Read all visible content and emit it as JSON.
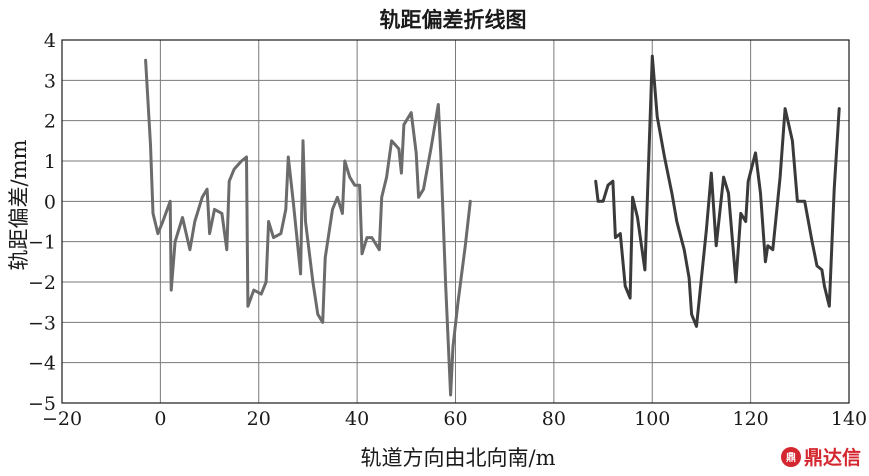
{
  "chart_data": {
    "type": "line",
    "title": "轨距偏差折线图",
    "xlabel": "轨道方向由北向南/m",
    "ylabel": "轨距偏差/mm",
    "xlim": [
      -20,
      140
    ],
    "ylim": [
      -5,
      4
    ],
    "xticks": [
      -20,
      0,
      20,
      40,
      60,
      80,
      100,
      120,
      140
    ],
    "yticks": [
      -5,
      -4,
      -3,
      -2,
      -1,
      0,
      1,
      2,
      3,
      4
    ],
    "grid": true,
    "legend": "none",
    "series": [
      {
        "color": "#6b6b6b",
        "points": [
          [
            -3,
            3.5
          ],
          [
            -2,
            1.4
          ],
          [
            -1.5,
            -0.3
          ],
          [
            -0.5,
            -0.8
          ],
          [
            0.5,
            -0.5
          ],
          [
            2,
            0
          ],
          [
            2.2,
            -2.2
          ],
          [
            3,
            -1
          ],
          [
            4.5,
            -0.4
          ],
          [
            6,
            -1.2
          ],
          [
            7,
            -0.5
          ],
          [
            8.5,
            0.1
          ],
          [
            9.5,
            0.3
          ],
          [
            10,
            -0.8
          ],
          [
            11,
            -0.2
          ],
          [
            12.5,
            -0.3
          ],
          [
            13.5,
            -1.2
          ],
          [
            14,
            0.5
          ],
          [
            15,
            0.8
          ],
          [
            16.5,
            1.0
          ],
          [
            17.5,
            1.1
          ],
          [
            17.8,
            -2.6
          ],
          [
            19,
            -2.2
          ],
          [
            20.5,
            -2.3
          ],
          [
            21.5,
            -2.0
          ],
          [
            22,
            -0.5
          ],
          [
            23,
            -0.9
          ],
          [
            24.5,
            -0.8
          ],
          [
            25.5,
            -0.2
          ],
          [
            26,
            1.1
          ],
          [
            27,
            0
          ],
          [
            28.5,
            -1.8
          ],
          [
            29,
            1.5
          ],
          [
            29.5,
            -0.5
          ],
          [
            31,
            -2
          ],
          [
            32,
            -2.8
          ],
          [
            33,
            -3
          ],
          [
            33.5,
            -1.4
          ],
          [
            35,
            -0.2
          ],
          [
            36,
            0.1
          ],
          [
            37,
            -0.3
          ],
          [
            37.5,
            1.0
          ],
          [
            38.5,
            0.6
          ],
          [
            39.5,
            0.4
          ],
          [
            40.5,
            0.4
          ],
          [
            41,
            -1.3
          ],
          [
            42,
            -0.9
          ],
          [
            43,
            -0.9
          ],
          [
            44.5,
            -1.2
          ],
          [
            45,
            0.1
          ],
          [
            46,
            0.6
          ],
          [
            47,
            1.5
          ],
          [
            48.5,
            1.3
          ],
          [
            49,
            0.7
          ],
          [
            49.5,
            1.9
          ],
          [
            51,
            2.2
          ],
          [
            52,
            1.2
          ],
          [
            52.5,
            0.1
          ],
          [
            53.5,
            0.3
          ],
          [
            55,
            1.3
          ],
          [
            56.5,
            2.4
          ],
          [
            57,
            1.2
          ],
          [
            58,
            -2.1
          ],
          [
            59,
            -4.8
          ],
          [
            59.5,
            -3.6
          ],
          [
            60.5,
            -2.5
          ],
          [
            62,
            -1.1
          ],
          [
            63,
            0
          ]
        ]
      },
      {
        "color": "#3a3a3a",
        "points": [
          [
            88.5,
            0.5
          ],
          [
            89,
            0
          ],
          [
            90,
            0
          ],
          [
            91,
            0.4
          ],
          [
            92,
            0.5
          ],
          [
            92.5,
            -0.9
          ],
          [
            93.5,
            -0.8
          ],
          [
            94.5,
            -2.1
          ],
          [
            95.5,
            -2.4
          ],
          [
            96,
            0.1
          ],
          [
            97,
            -0.4
          ],
          [
            98.5,
            -1.7
          ],
          [
            100,
            3.6
          ],
          [
            101,
            2.1
          ],
          [
            102.5,
            1.1
          ],
          [
            104,
            0.2
          ],
          [
            105,
            -0.5
          ],
          [
            106.5,
            -1.2
          ],
          [
            107.5,
            -1.9
          ],
          [
            108,
            -2.8
          ],
          [
            109,
            -3.1
          ],
          [
            111,
            -0.7
          ],
          [
            112,
            0.7
          ],
          [
            113,
            -1.1
          ],
          [
            114.5,
            0.6
          ],
          [
            115.5,
            0.2
          ],
          [
            117,
            -2
          ],
          [
            118,
            -0.3
          ],
          [
            119,
            -0.5
          ],
          [
            119.5,
            0.5
          ],
          [
            121,
            1.2
          ],
          [
            122,
            0.2
          ],
          [
            123,
            -1.5
          ],
          [
            123.5,
            -1.1
          ],
          [
            124.5,
            -1.2
          ],
          [
            126,
            0.6
          ],
          [
            127,
            2.3
          ],
          [
            128.5,
            1.5
          ],
          [
            129.5,
            0
          ],
          [
            131,
            0
          ],
          [
            132.5,
            -1
          ],
          [
            133.5,
            -1.6
          ],
          [
            134.5,
            -1.7
          ],
          [
            135,
            -2.1
          ],
          [
            136,
            -2.6
          ],
          [
            137,
            0.3
          ],
          [
            138,
            2.3
          ]
        ]
      }
    ]
  },
  "watermark": {
    "logo_text": "鼎",
    "text": "鼎达信"
  }
}
